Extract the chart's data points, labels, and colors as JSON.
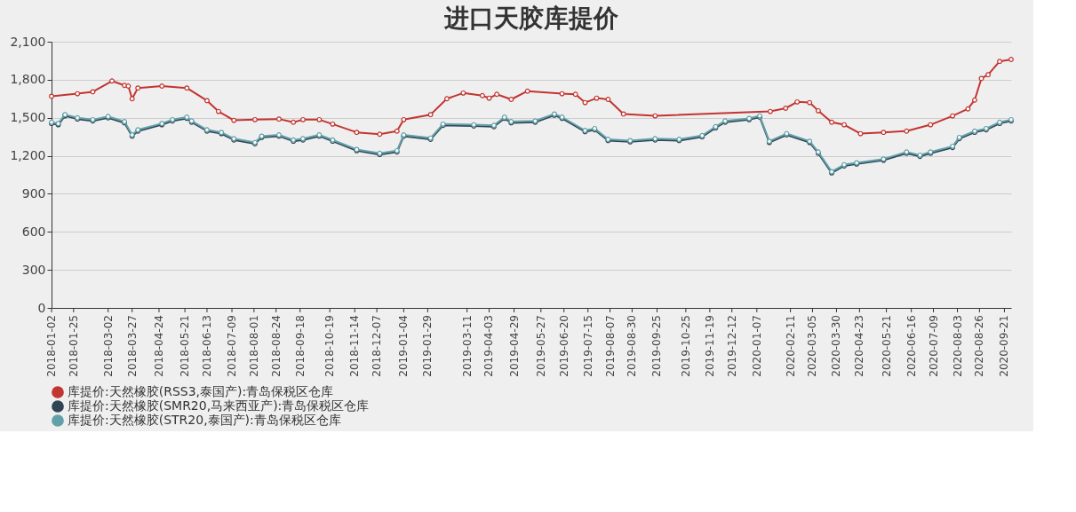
{
  "chart_data": {
    "type": "line",
    "title": "进口天胶库提价",
    "xlim": [
      "2018-01-02",
      "2020-09-28"
    ],
    "xticks": [
      "2018-01-02",
      "2018-01-25",
      "2018-03-02",
      "2018-03-27",
      "2018-04-24",
      "2018-05-21",
      "2018-06-13",
      "2018-07-09",
      "2018-08-01",
      "2018-08-24",
      "2018-09-18",
      "2018-10-19",
      "2018-11-14",
      "2018-12-07",
      "2019-01-04",
      "2019-01-29",
      "2019-03-11",
      "2019-04-03",
      "2019-04-29",
      "2019-05-27",
      "2019-06-20",
      "2019-07-15",
      "2019-08-07",
      "2019-08-30",
      "2019-09-25",
      "2019-10-25",
      "2019-11-19",
      "2019-12-12",
      "2020-01-07",
      "2020-02-11",
      "2020-03-05",
      "2020-03-30",
      "2020-04-23",
      "2020-05-21",
      "2020-06-16",
      "2020-07-09",
      "2020-08-03",
      "2020-08-26",
      "2020-09-21"
    ],
    "ylim": [
      0,
      2100
    ],
    "yticks": [
      0,
      300,
      600,
      900,
      {
        "value": 1200,
        "label": "1,200"
      },
      {
        "value": 1500,
        "label": "1,500"
      },
      {
        "value": 1800,
        "label": "1,800"
      },
      {
        "value": 2100,
        "label": "2,100"
      }
    ],
    "grid": "y",
    "legend": "bottom",
    "marker": "circle",
    "line_style": "solid",
    "series": [
      {
        "name": "库提价:天然橡胶(RSS3,泰国产):青岛保税区仓库",
        "color": "#c23531",
        "x": [
          "2018-01-02",
          "2018-01-29",
          "2018-02-14",
          "2018-03-06",
          "2018-03-19",
          "2018-03-23",
          "2018-03-27",
          "2018-04-02",
          "2018-04-27",
          "2018-05-23",
          "2018-06-13",
          "2018-06-25",
          "2018-07-11",
          "2018-08-02",
          "2018-08-27",
          "2018-09-11",
          "2018-09-21",
          "2018-10-08",
          "2018-10-22",
          "2018-11-16",
          "2018-12-10",
          "2018-12-28",
          "2019-01-04",
          "2019-02-01",
          "2019-02-18",
          "2019-03-07",
          "2019-03-27",
          "2019-04-03",
          "2019-04-11",
          "2019-04-26",
          "2019-05-13",
          "2019-06-18",
          "2019-07-02",
          "2019-07-12",
          "2019-07-24",
          "2019-08-05",
          "2019-08-21",
          "2019-09-23",
          "2020-01-21",
          "2020-02-06",
          "2020-02-18",
          "2020-03-02",
          "2020-03-11",
          "2020-03-25",
          "2020-04-07",
          "2020-04-24",
          "2020-05-18",
          "2020-06-11",
          "2020-07-06",
          "2020-07-29",
          "2020-08-14",
          "2020-08-21",
          "2020-08-28",
          "2020-09-04",
          "2020-09-16",
          "2020-09-28"
        ],
        "values": [
          1670,
          1690,
          1705,
          1790,
          1755,
          1750,
          1650,
          1735,
          1750,
          1735,
          1635,
          1550,
          1480,
          1485,
          1490,
          1465,
          1485,
          1485,
          1450,
          1385,
          1370,
          1395,
          1485,
          1525,
          1650,
          1695,
          1675,
          1655,
          1685,
          1645,
          1710,
          1690,
          1685,
          1620,
          1655,
          1645,
          1530,
          1515,
          1550,
          1575,
          1625,
          1620,
          1555,
          1465,
          1445,
          1375,
          1385,
          1395,
          1445,
          1515,
          1570,
          1640,
          1810,
          1840,
          1945,
          1960
        ]
      },
      {
        "name": "库提价:天然橡胶(SMR20,马来西亚产):青岛保税区仓库",
        "color": "#2f4554",
        "x": [
          "2018-01-02",
          "2018-01-09",
          "2018-01-16",
          "2018-01-29",
          "2018-02-14",
          "2018-03-02",
          "2018-03-19",
          "2018-03-27",
          "2018-04-02",
          "2018-04-27",
          "2018-05-08",
          "2018-05-23",
          "2018-05-28",
          "2018-06-13",
          "2018-06-28",
          "2018-07-11",
          "2018-08-02",
          "2018-08-09",
          "2018-08-27",
          "2018-09-11",
          "2018-09-21",
          "2018-10-08",
          "2018-10-22",
          "2018-11-16",
          "2018-12-10",
          "2018-12-28",
          "2019-01-04",
          "2019-02-01",
          "2019-02-14",
          "2019-03-18",
          "2019-04-08",
          "2019-04-19",
          "2019-04-26",
          "2019-05-21",
          "2019-06-10",
          "2019-06-18",
          "2019-07-12",
          "2019-07-22",
          "2019-08-05",
          "2019-08-28",
          "2019-09-23",
          "2019-10-18",
          "2019-11-11",
          "2019-11-25",
          "2019-12-05",
          "2019-12-30",
          "2020-01-10",
          "2020-01-20",
          "2020-02-07",
          "2020-03-02",
          "2020-03-11",
          "2020-03-25",
          "2020-04-07",
          "2020-04-20",
          "2020-05-18",
          "2020-06-11",
          "2020-06-25",
          "2020-07-06",
          "2020-07-29",
          "2020-08-05",
          "2020-08-21",
          "2020-09-02",
          "2020-09-16",
          "2020-09-28"
        ],
        "values": [
          1455,
          1445,
          1515,
          1490,
          1475,
          1500,
          1460,
          1355,
          1395,
          1445,
          1475,
          1495,
          1465,
          1395,
          1375,
          1325,
          1295,
          1345,
          1355,
          1315,
          1325,
          1355,
          1315,
          1240,
          1210,
          1230,
          1355,
          1330,
          1440,
          1435,
          1430,
          1495,
          1460,
          1465,
          1520,
          1495,
          1390,
          1405,
          1320,
          1310,
          1325,
          1320,
          1350,
          1420,
          1465,
          1485,
          1505,
          1305,
          1365,
          1305,
          1220,
          1065,
          1120,
          1135,
          1165,
          1220,
          1195,
          1220,
          1265,
          1335,
          1385,
          1405,
          1455,
          1475
        ]
      },
      {
        "name": "库提价:天然橡胶(STR20,泰国产):青岛保税区仓库",
        "color": "#61a0a8",
        "x": [
          "2018-01-02",
          "2018-01-09",
          "2018-01-16",
          "2018-01-29",
          "2018-02-14",
          "2018-03-02",
          "2018-03-19",
          "2018-03-27",
          "2018-04-02",
          "2018-04-27",
          "2018-05-08",
          "2018-05-23",
          "2018-05-28",
          "2018-06-13",
          "2018-06-28",
          "2018-07-11",
          "2018-08-02",
          "2018-08-09",
          "2018-08-27",
          "2018-09-11",
          "2018-09-21",
          "2018-10-08",
          "2018-10-22",
          "2018-11-16",
          "2018-12-10",
          "2018-12-28",
          "2019-01-04",
          "2019-02-01",
          "2019-02-14",
          "2019-03-18",
          "2019-04-08",
          "2019-04-19",
          "2019-04-26",
          "2019-05-21",
          "2019-06-10",
          "2019-06-18",
          "2019-07-12",
          "2019-07-22",
          "2019-08-05",
          "2019-08-28",
          "2019-09-23",
          "2019-10-18",
          "2019-11-11",
          "2019-11-25",
          "2019-12-05",
          "2019-12-30",
          "2020-01-10",
          "2020-01-20",
          "2020-02-07",
          "2020-03-02",
          "2020-03-11",
          "2020-03-25",
          "2020-04-07",
          "2020-04-20",
          "2020-05-18",
          "2020-06-11",
          "2020-06-25",
          "2020-07-06",
          "2020-07-29",
          "2020-08-05",
          "2020-08-21",
          "2020-09-02",
          "2020-09-16",
          "2020-09-28"
        ],
        "values": [
          1465,
          1455,
          1525,
          1500,
          1485,
          1510,
          1470,
          1365,
          1405,
          1455,
          1485,
          1505,
          1475,
          1405,
          1385,
          1335,
          1305,
          1355,
          1365,
          1325,
          1335,
          1365,
          1325,
          1250,
          1220,
          1240,
          1365,
          1340,
          1450,
          1445,
          1440,
          1505,
          1470,
          1475,
          1530,
          1505,
          1400,
          1415,
          1330,
          1320,
          1335,
          1330,
          1360,
          1430,
          1475,
          1495,
          1515,
          1315,
          1375,
          1315,
          1230,
          1075,
          1130,
          1145,
          1175,
          1230,
          1205,
          1230,
          1275,
          1345,
          1395,
          1415,
          1465,
          1485
        ]
      }
    ]
  }
}
